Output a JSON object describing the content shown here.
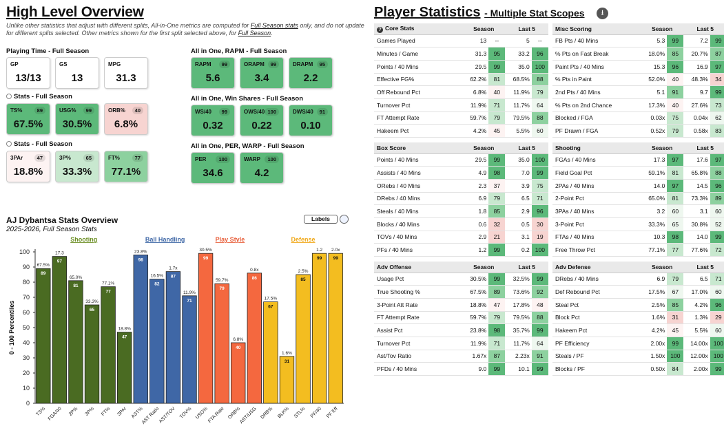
{
  "left_title": "High Level Overview",
  "right_title_main": "Player Statistics",
  "right_title_sub": "- Multiple Stat Scopes",
  "note_prefix": "Unlike other statistics that adjust with different splits, All-in-One metrics are computed for ",
  "note_link1": "Full Season stats",
  "note_mid": " only, and do not update for different splits selected. Other metrics shown for the first split selected above, for ",
  "note_link2": "Full Season",
  "note_end": ".",
  "groups": {
    "playing_time": "Playing Time - Full Season",
    "stats1": "Stats - Full Season",
    "stats2": "Stats - Full Season",
    "rapm": "All in One, RAPM - Full Season",
    "ws": "All in One, Win Shares - Full Season",
    "per": "All in One, PER, WARP - Full Season"
  },
  "cards": {
    "gp": {
      "label": "GP",
      "value": "13/13"
    },
    "gs": {
      "label": "GS",
      "value": "13"
    },
    "mpg": {
      "label": "MPG",
      "value": "31.3"
    },
    "ts": {
      "label": "TS%",
      "rank": "89",
      "value": "67.5%"
    },
    "usg": {
      "label": "USG%",
      "rank": "99",
      "value": "30.5%"
    },
    "orb": {
      "label": "ORB%",
      "rank": "40",
      "value": "6.8%"
    },
    "tpar": {
      "label": "3PAr",
      "rank": "47",
      "value": "18.8%"
    },
    "tp": {
      "label": "3P%",
      "rank": "65",
      "value": "33.3%"
    },
    "ft": {
      "label": "FT%",
      "rank": "77",
      "value": "77.1%"
    },
    "rapm": {
      "label": "RAPM",
      "rank": "99",
      "value": "5.6"
    },
    "orapm": {
      "label": "ORAPM",
      "rank": "99",
      "value": "3.4"
    },
    "drapm": {
      "label": "DRAPM",
      "rank": "95",
      "value": "2.2"
    },
    "ws40": {
      "label": "WS/40",
      "rank": "99",
      "value": "0.32"
    },
    "ows40": {
      "label": "OWS/40",
      "rank": "100",
      "value": "0.22"
    },
    "dws40": {
      "label": "DWS/40",
      "rank": "91",
      "value": "0.10"
    },
    "per": {
      "label": "PER",
      "rank": "100",
      "value": "34.6"
    },
    "warp": {
      "label": "WARP",
      "rank": "100",
      "value": "4.2"
    }
  },
  "colors": {
    "card_green_dark": "#5cb97a",
    "card_green_mid": "#8dd19f",
    "card_green_light": "#c8e8cf",
    "card_pink": "#f7d4d1",
    "card_white": "#ffffff",
    "shooting": "#4a6b22",
    "ball_handling": "#3f67a6",
    "play_style": "#f4683f",
    "defense": "#f3bd20",
    "shooting_label": "#6b8e23",
    "ball_handling_label": "#3e67a6",
    "play_style_label": "#e8603c",
    "defense_label": "#f0a818"
  },
  "chart_title": "AJ Dybantsa Stats Overview",
  "chart_subtitle": "2025-2026, Full Season Stats",
  "labels_toggle": "Labels",
  "chart_data": {
    "type": "bar",
    "ylabel": "0 - 100 Percentiles",
    "ylim": [
      0,
      100
    ],
    "yticks": [
      0,
      10,
      20,
      30,
      40,
      50,
      60,
      70,
      80,
      90,
      100
    ],
    "categories": [
      "TS%",
      "FGA/40",
      "2P%",
      "3P%",
      "FT%",
      "3PAr",
      "AST%",
      "AST Ratio",
      "AST/TOV",
      "TOV%",
      "USG%",
      "FTA Rate",
      "ORB%",
      "AST/USG",
      "DRB%",
      "BLK%",
      "STL%",
      "PF/40",
      "PF Eff"
    ],
    "values": [
      89,
      97,
      81,
      65,
      77,
      47,
      98,
      82,
      87,
      71,
      99,
      79,
      40,
      86,
      67,
      31,
      85,
      99,
      99
    ],
    "raw_labels": [
      "67.5%",
      "17.3",
      "65.0%",
      "33.3%",
      "77.1%",
      "18.8%",
      "23.8%",
      "16.5%",
      "1.7x",
      "11.9%",
      "30.5%",
      "59.7%",
      "6.8%",
      "0.8x",
      "17.5%",
      "1.6%",
      "2.5%",
      "1.2",
      "2.0x"
    ],
    "groups": [
      {
        "name": "Shooting",
        "start": 0,
        "end": 5,
        "color": "#4a6b22"
      },
      {
        "name": "Ball Handling",
        "start": 6,
        "end": 9,
        "color": "#3f67a6"
      },
      {
        "name": "Play Style",
        "start": 10,
        "end": 13,
        "color": "#f4683f"
      },
      {
        "name": "Defense",
        "start": 14,
        "end": 18,
        "color": "#f3bd20"
      }
    ]
  },
  "tables": [
    {
      "title": "Core Stats",
      "icon": "info-icon",
      "col1": "Season",
      "col2": "Last 5",
      "rows": [
        [
          "Games Played",
          "13",
          "--",
          "5",
          "--"
        ],
        [
          "Minutes / Game",
          "31.3",
          "95",
          "33.2",
          "96"
        ],
        [
          "Points / 40 Mins",
          "29.5",
          "99",
          "35.0",
          "100"
        ],
        [
          "Effective FG%",
          "62.2%",
          "81",
          "68.5%",
          "88"
        ],
        [
          "Off Rebound Pct",
          "6.8%",
          "40",
          "11.9%",
          "79"
        ],
        [
          "Turnover Pct",
          "11.9%",
          "71",
          "11.7%",
          "64"
        ],
        [
          "FT Attempt Rate",
          "59.7%",
          "79",
          "79.5%",
          "88"
        ],
        [
          "Hakeem Pct",
          "4.2%",
          "45",
          "5.5%",
          "60"
        ]
      ]
    },
    {
      "title": "Misc Scoring",
      "col1": "Season",
      "col2": "Last 5",
      "rows": [
        [
          "FB Pts / 40 Mins",
          "5.3",
          "99",
          "7.2",
          "99"
        ],
        [
          "% Pts on Fast Break",
          "18.0%",
          "85",
          "20.7%",
          "87"
        ],
        [
          "Paint Pts / 40 Mins",
          "15.3",
          "96",
          "16.9",
          "97"
        ],
        [
          "% Pts in Paint",
          "52.0%",
          "40",
          "48.3%",
          "34"
        ],
        [
          "2nd Pts / 40 Mins",
          "5.1",
          "91",
          "9.7",
          "99"
        ],
        [
          "% Pts on 2nd Chance",
          "17.3%",
          "40",
          "27.6%",
          "73"
        ],
        [
          "Blocked / FGA",
          "0.03x",
          "75",
          "0.04x",
          "62"
        ],
        [
          "PF Drawn / FGA",
          "0.52x",
          "79",
          "0.58x",
          "83"
        ]
      ]
    },
    {
      "title": "Box Score",
      "col1": "Season",
      "col2": "Last 5",
      "rows": [
        [
          "Points / 40 Mins",
          "29.5",
          "99",
          "35.0",
          "100"
        ],
        [
          "Assists / 40 Mins",
          "4.9",
          "98",
          "7.0",
          "99"
        ],
        [
          "ORebs / 40 Mins",
          "2.3",
          "37",
          "3.9",
          "75"
        ],
        [
          "DRebs / 40 Mins",
          "6.9",
          "79",
          "6.5",
          "71"
        ],
        [
          "Steals / 40 Mins",
          "1.8",
          "85",
          "2.9",
          "96"
        ],
        [
          "Blocks / 40 Mins",
          "0.6",
          "32",
          "0.5",
          "30"
        ],
        [
          "TOVs / 40 Mins",
          "2.9",
          "21",
          "3.1",
          "19"
        ],
        [
          "PFs / 40 Mins",
          "1.2",
          "99",
          "0.2",
          "100"
        ]
      ]
    },
    {
      "title": "Shooting",
      "col1": "Season",
      "col2": "Last 5",
      "rows": [
        [
          "FGAs / 40 Mins",
          "17.3",
          "97",
          "17.6",
          "97"
        ],
        [
          "Field Goal Pct",
          "59.1%",
          "81",
          "65.8%",
          "88"
        ],
        [
          "2PAs / 40 Mins",
          "14.0",
          "97",
          "14.5",
          "96"
        ],
        [
          "2-Point Pct",
          "65.0%",
          "81",
          "73.3%",
          "89"
        ],
        [
          "3PAs / 40 Mins",
          "3.2",
          "60",
          "3.1",
          "60"
        ],
        [
          "3-Point Pct",
          "33.3%",
          "65",
          "30.8%",
          "52"
        ],
        [
          "FTAs / 40 Mins",
          "10.3",
          "98",
          "14.0",
          "99"
        ],
        [
          "Free Throw Pct",
          "77.1%",
          "77",
          "77.6%",
          "72"
        ]
      ]
    },
    {
      "title": "Adv Offense",
      "col1": "Season",
      "col2": "Last 5",
      "rows": [
        [
          "Usage Pct",
          "30.5%",
          "99",
          "32.5%",
          "99"
        ],
        [
          "True Shooting %",
          "67.5%",
          "89",
          "73.6%",
          "92"
        ],
        [
          "3-Point Att Rate",
          "18.8%",
          "47",
          "17.8%",
          "48"
        ],
        [
          "FT Attempt Rate",
          "59.7%",
          "79",
          "79.5%",
          "88"
        ],
        [
          "Assist Pct",
          "23.8%",
          "98",
          "35.7%",
          "99"
        ],
        [
          "Turnover Pct",
          "11.9%",
          "71",
          "11.7%",
          "64"
        ],
        [
          "Ast/Tov Ratio",
          "1.67x",
          "87",
          "2.23x",
          "91"
        ],
        [
          "PFDs / 40 Mins",
          "9.0",
          "99",
          "10.1",
          "99"
        ]
      ]
    },
    {
      "title": "Adv Defense",
      "col1": "Season",
      "col2": "Last 5",
      "rows": [
        [
          "DRebs / 40 Mins",
          "6.9",
          "79",
          "6.5",
          "71"
        ],
        [
          "Def Rebound Pct",
          "17.5%",
          "67",
          "17.0%",
          "60"
        ],
        [
          "Steal Pct",
          "2.5%",
          "85",
          "4.2%",
          "96"
        ],
        [
          "Block Pct",
          "1.6%",
          "31",
          "1.3%",
          "29"
        ],
        [
          "Hakeem Pct",
          "4.2%",
          "45",
          "5.5%",
          "60"
        ],
        [
          "PF Efficiency",
          "2.00x",
          "99",
          "14.00x",
          "100"
        ],
        [
          "Steals / PF",
          "1.50x",
          "100",
          "12.00x",
          "100"
        ],
        [
          "Blocks / PF",
          "0.50x",
          "84",
          "2.00x",
          "99"
        ]
      ]
    }
  ]
}
